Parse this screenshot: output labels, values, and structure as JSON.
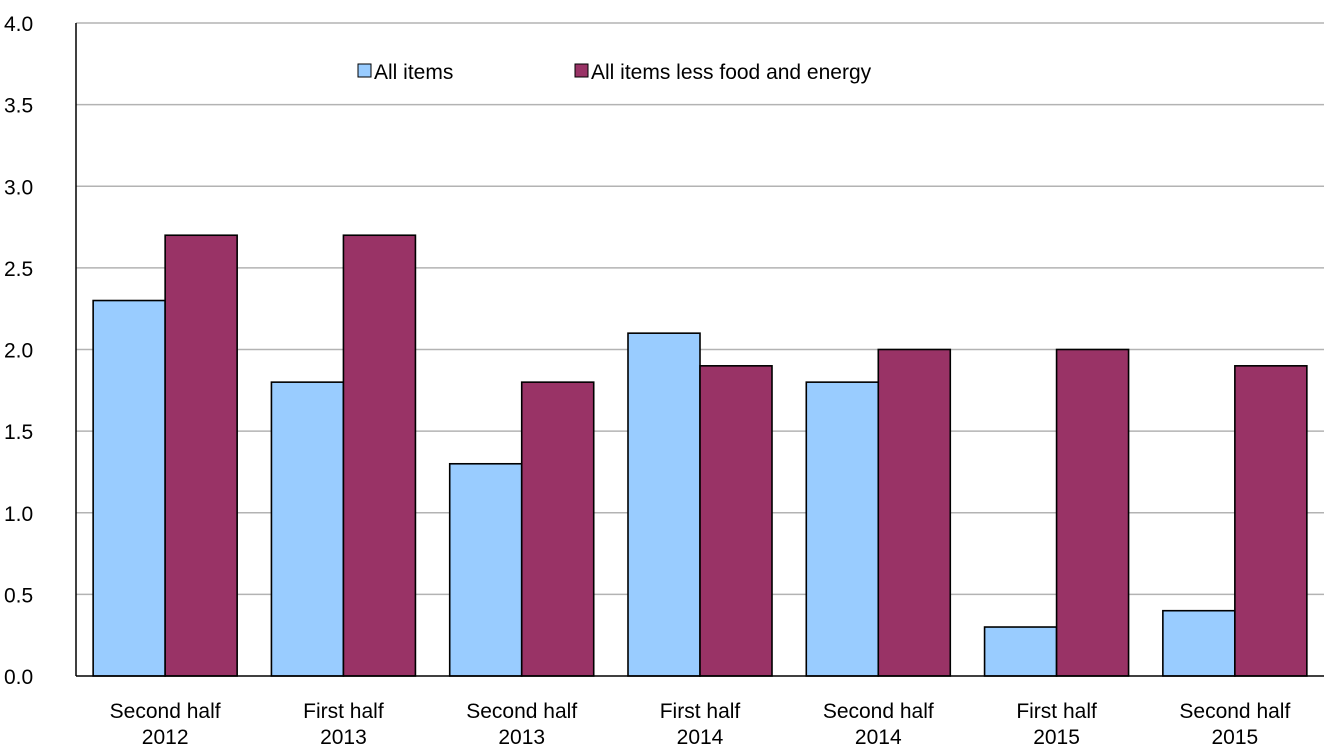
{
  "chart_data": {
    "type": "bar",
    "title": "",
    "xlabel": "",
    "ylabel": "",
    "categories": [
      [
        "Second half",
        "2012"
      ],
      [
        "First half",
        "2013"
      ],
      [
        "Second half",
        "2013"
      ],
      [
        "First half",
        "2014"
      ],
      [
        "Second half",
        "2014"
      ],
      [
        "First half",
        "2015"
      ],
      [
        "Second half",
        "2015"
      ]
    ],
    "series": [
      {
        "name": "All items",
        "color": "#99ccff",
        "values": [
          2.3,
          1.8,
          1.3,
          2.1,
          1.8,
          0.3,
          0.4
        ]
      },
      {
        "name": "All items less food and energy",
        "color": "#993366",
        "values": [
          2.7,
          2.7,
          1.8,
          1.9,
          2.0,
          2.0,
          1.9
        ]
      }
    ],
    "ylim": [
      0,
      4
    ],
    "yticks": [
      "0.0",
      "0.5",
      "1.0",
      "1.5",
      "2.0",
      "2.5",
      "3.0",
      "3.5",
      "4.0"
    ],
    "grid": true,
    "legend_position": "top"
  }
}
